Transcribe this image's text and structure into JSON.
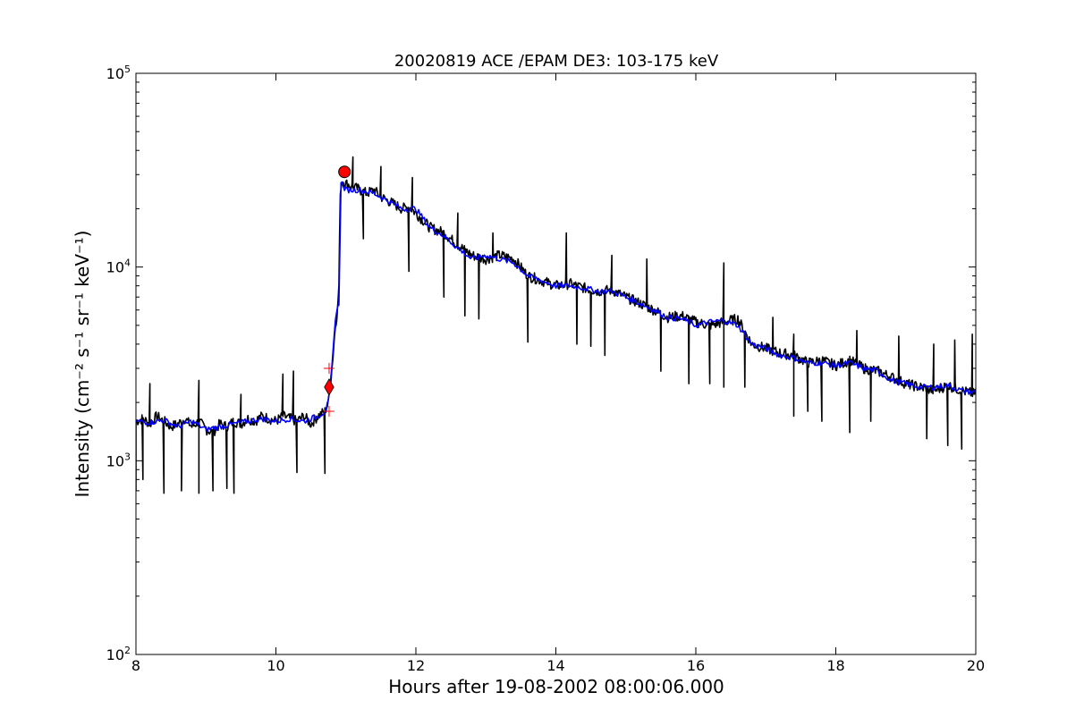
{
  "chart_data": {
    "type": "line",
    "title": "20020819 ACE /EPAM DE3: 103-175 keV",
    "xlabel": "Hours after 19-08-2002 08:00:06.000",
    "ylabel": "Intensity (cm⁻² s⁻¹ sr⁻¹ keV⁻¹)",
    "xlim": [
      8,
      20
    ],
    "ylim": [
      100,
      100000
    ],
    "yscale": "log",
    "grid": false,
    "x_ticks": [
      "8",
      "10",
      "12",
      "14",
      "16",
      "18",
      "20"
    ],
    "y_ticks": [
      {
        "base": "10",
        "exp": "2",
        "value": 100
      },
      {
        "base": "10",
        "exp": "3",
        "value": 1000
      },
      {
        "base": "10",
        "exp": "4",
        "value": 10000
      },
      {
        "base": "10",
        "exp": "5",
        "value": 100000
      }
    ],
    "colors": {
      "raw": "#000000",
      "smoothed": "#0000ff",
      "marker": "#ff0000"
    },
    "series": [
      {
        "kind": "raw",
        "color": "#000000",
        "x": [
          8.0,
          8.1,
          8.2,
          8.3,
          8.4,
          8.5,
          8.6,
          8.7,
          8.8,
          8.9,
          9.0,
          9.1,
          9.2,
          9.3,
          9.4,
          9.5,
          9.6,
          9.7,
          9.8,
          9.9,
          10.0,
          10.1,
          10.2,
          10.3,
          10.4,
          10.5,
          10.6,
          10.65,
          10.7,
          10.75,
          10.8,
          10.85,
          10.88,
          10.9,
          10.92,
          10.95,
          11.0,
          11.1,
          11.2,
          11.3,
          11.4,
          11.5,
          11.6,
          11.7,
          11.8,
          11.9,
          12.0,
          12.2,
          12.4,
          12.6,
          12.8,
          13.0,
          13.2,
          13.4,
          13.6,
          13.8,
          14.0,
          14.2,
          14.4,
          14.6,
          14.8,
          15.0,
          15.2,
          15.4,
          15.6,
          15.8,
          16.0,
          16.2,
          16.4,
          16.6,
          16.8,
          17.0,
          17.2,
          17.4,
          17.6,
          17.8,
          18.0,
          18.2,
          18.4,
          18.6,
          18.8,
          19.0,
          19.2,
          19.4,
          19.6,
          19.8,
          20.0
        ],
        "y": [
          1600,
          1650,
          1550,
          1700,
          1600,
          1500,
          1550,
          1650,
          1500,
          1600,
          1450,
          1400,
          1550,
          1500,
          1600,
          1550,
          1650,
          1600,
          1700,
          1650,
          1600,
          1700,
          1650,
          1600,
          1700,
          1550,
          1700,
          1750,
          1800,
          2000,
          3000,
          5000,
          6000,
          8000,
          25000,
          28000,
          27000,
          26000,
          25000,
          24000,
          25000,
          23000,
          22000,
          21000,
          20000,
          20500,
          19000,
          16000,
          15000,
          13000,
          11500,
          11000,
          11500,
          11000,
          9000,
          8500,
          8000,
          8200,
          7800,
          7500,
          7600,
          7000,
          6500,
          6000,
          5500,
          5600,
          5200,
          5000,
          5200,
          5400,
          4000,
          3800,
          3600,
          3500,
          3200,
          3300,
          3100,
          3300,
          3000,
          2900,
          2700,
          2500,
          2400,
          2300,
          2450,
          2300,
          2200
        ],
        "dips": [
          [
            8.0,
            700
          ],
          [
            8.1,
            800
          ],
          [
            8.4,
            680
          ],
          [
            8.65,
            700
          ],
          [
            8.9,
            680
          ],
          [
            9.1,
            700
          ],
          [
            9.3,
            720
          ],
          [
            9.4,
            680
          ],
          [
            10.3,
            870
          ],
          [
            10.7,
            860
          ],
          [
            11.25,
            14000
          ],
          [
            11.9,
            9500
          ],
          [
            12.4,
            7000
          ],
          [
            12.7,
            5600
          ],
          [
            12.9,
            5400
          ],
          [
            13.6,
            4100
          ],
          [
            14.3,
            4000
          ],
          [
            14.5,
            3900
          ],
          [
            14.7,
            3500
          ],
          [
            15.5,
            2900
          ],
          [
            15.9,
            2500
          ],
          [
            16.2,
            2500
          ],
          [
            16.4,
            2400
          ],
          [
            16.7,
            2400
          ],
          [
            17.4,
            1700
          ],
          [
            17.6,
            1800
          ],
          [
            17.8,
            1600
          ],
          [
            18.2,
            1400
          ],
          [
            18.5,
            1600
          ],
          [
            19.3,
            1300
          ],
          [
            19.6,
            1200
          ],
          [
            19.8,
            1150
          ]
        ],
        "spikes": [
          [
            8.2,
            2500
          ],
          [
            8.9,
            2600
          ],
          [
            9.5,
            2200
          ],
          [
            10.1,
            2800
          ],
          [
            10.25,
            2900
          ],
          [
            11.1,
            37000
          ],
          [
            11.5,
            33000
          ],
          [
            11.95,
            29000
          ],
          [
            12.6,
            19000
          ],
          [
            13.1,
            15000
          ],
          [
            14.15,
            15000
          ],
          [
            14.8,
            11500
          ],
          [
            15.3,
            11000
          ],
          [
            16.4,
            10500
          ],
          [
            17.1,
            5500
          ],
          [
            17.4,
            4500
          ],
          [
            18.3,
            4700
          ],
          [
            18.9,
            4400
          ],
          [
            19.4,
            4000
          ],
          [
            19.7,
            4200
          ],
          [
            19.95,
            4500
          ]
        ]
      },
      {
        "kind": "smoothed",
        "color": "#0000ff",
        "x": [
          8.0,
          8.2,
          8.4,
          8.6,
          8.8,
          9.0,
          9.2,
          9.4,
          9.6,
          9.8,
          10.0,
          10.2,
          10.4,
          10.6,
          10.7,
          10.75,
          10.8,
          10.85,
          10.9,
          10.93,
          10.96,
          11.0,
          11.2,
          11.4,
          11.6,
          11.8,
          12.0,
          12.2,
          12.4,
          12.6,
          12.8,
          13.0,
          13.2,
          13.4,
          13.6,
          13.8,
          14.0,
          14.2,
          14.4,
          14.6,
          14.8,
          15.0,
          15.2,
          15.4,
          15.6,
          15.8,
          16.0,
          16.2,
          16.4,
          16.6,
          16.8,
          17.0,
          17.2,
          17.4,
          17.6,
          17.8,
          18.0,
          18.2,
          18.4,
          18.6,
          18.8,
          19.0,
          19.2,
          19.4,
          19.6,
          19.8,
          20.0
        ],
        "y": [
          1600,
          1580,
          1620,
          1500,
          1600,
          1450,
          1500,
          1550,
          1600,
          1650,
          1600,
          1650,
          1600,
          1700,
          1800,
          2000,
          3000,
          5500,
          6500,
          28000,
          26000,
          25000,
          25000,
          24000,
          22000,
          20000,
          20000,
          16000,
          14500,
          12500,
          11000,
          11500,
          11000,
          10500,
          9000,
          8500,
          8000,
          8000,
          7800,
          7500,
          7500,
          7000,
          6500,
          6000,
          5500,
          5400,
          5000,
          5200,
          5300,
          5000,
          4000,
          3800,
          3500,
          3400,
          3200,
          3200,
          3100,
          3200,
          3000,
          2900,
          2600,
          2500,
          2400,
          2400,
          2450,
          2300,
          2250
        ]
      }
    ],
    "markers": [
      {
        "type": "circle",
        "x": 10.98,
        "y": 31000,
        "color": "#ff0000"
      },
      {
        "type": "diamond",
        "x": 10.76,
        "y": 2400,
        "color": "#ff0000"
      },
      {
        "type": "plus",
        "x": 10.76,
        "y": 3000,
        "color": "#ff0000"
      },
      {
        "type": "plus",
        "x": 10.76,
        "y": 1800,
        "color": "#ff0000"
      }
    ]
  }
}
